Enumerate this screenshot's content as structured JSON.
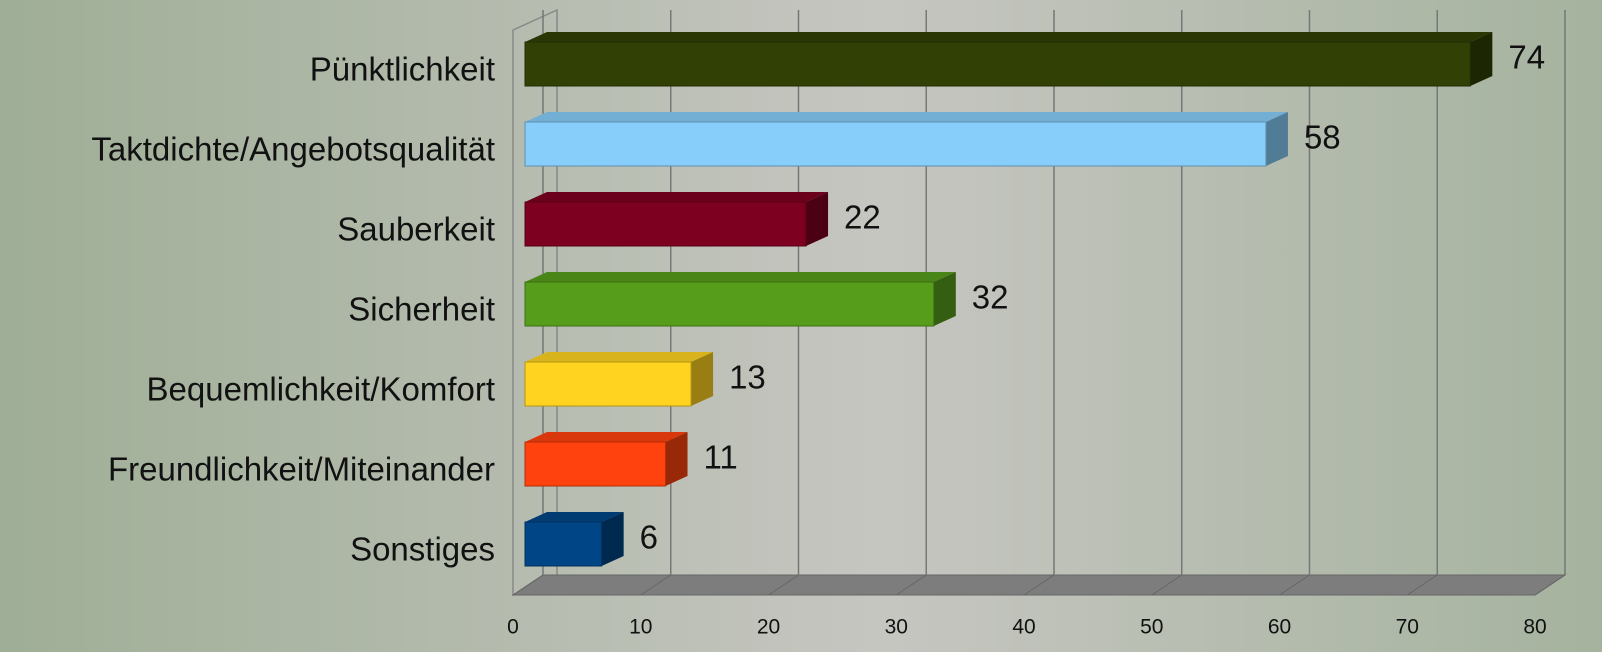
{
  "chart_data": {
    "type": "bar3d-horizontal",
    "categories": [
      "Pünktlichkeit",
      "Taktdichte/Angebotsqualität",
      "Sauberkeit",
      "Sicherheit",
      "Bequemlichkeit/Komfort",
      "Freundlichkeit/Miteinander",
      "Sonstiges"
    ],
    "values": [
      74,
      58,
      22,
      32,
      13,
      11,
      6
    ],
    "colors": [
      "#314004",
      "#87cefa",
      "#7e0021",
      "#579d1c",
      "#ffd320",
      "#ff420e",
      "#004586"
    ],
    "xlim": [
      0,
      80
    ],
    "xticks": [
      0,
      10,
      20,
      30,
      40,
      50,
      60,
      70,
      80
    ],
    "grid": true
  }
}
